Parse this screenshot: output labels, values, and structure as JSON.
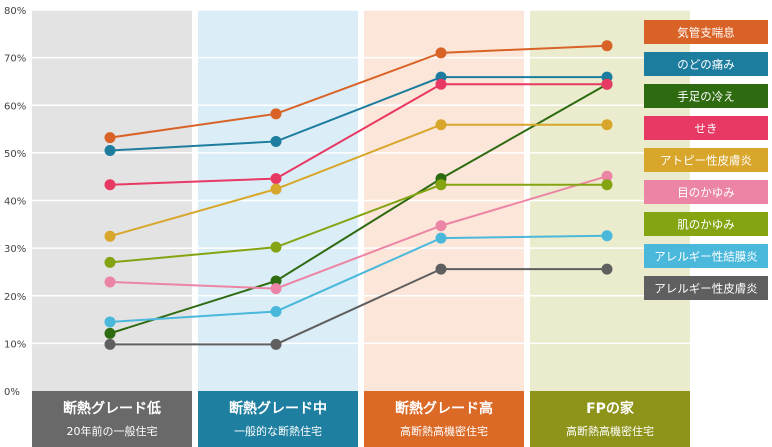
{
  "chart_data": {
    "type": "line",
    "ylim": [
      0,
      80
    ],
    "y_ticks": [
      "0%",
      "10%",
      "20%",
      "30%",
      "40%",
      "50%",
      "60%",
      "70%",
      "80%"
    ],
    "grid": true,
    "legend_position": "right",
    "categories": [
      {
        "title": "断熱グレード低",
        "subtitle": "20年前の一般住宅",
        "band_color": "#e3e3e3",
        "label_color": "#696969"
      },
      {
        "title": "断熱グレード中",
        "subtitle": "一般的な断熱住宅",
        "band_color": "#dbeef7",
        "label_color": "#1e7fa0"
      },
      {
        "title": "断熱グレード高",
        "subtitle": "高断熱高機密住宅",
        "band_color": "#fce6da",
        "label_color": "#db6a27"
      },
      {
        "title": "FPの家",
        "subtitle": "高断熱高機密住宅",
        "band_color": "#eaeccd",
        "label_color": "#8e9419"
      }
    ],
    "series": [
      {
        "name": "気管支喘息",
        "color": "#d96327",
        "values": [
          53.2,
          58.2,
          71.0,
          72.5
        ]
      },
      {
        "name": "のどの痛み",
        "color": "#1d7d9e",
        "values": [
          50.5,
          52.4,
          65.9,
          65.9
        ]
      },
      {
        "name": "手足の冷え",
        "color": "#2e6a0f",
        "values": [
          12.1,
          23.1,
          44.6,
          64.4
        ]
      },
      {
        "name": "せき",
        "color": "#e83864",
        "values": [
          43.3,
          44.6,
          64.4,
          64.4
        ]
      },
      {
        "name": "アトピー性皮膚炎",
        "color": "#d8a62b",
        "values": [
          32.5,
          42.4,
          55.9,
          55.9
        ]
      },
      {
        "name": "目のかゆみ",
        "color": "#ec85a5",
        "values": [
          22.9,
          21.5,
          34.7,
          45.1
        ]
      },
      {
        "name": "肌のかゆみ",
        "color": "#84a412",
        "values": [
          27.0,
          30.2,
          43.3,
          43.3
        ]
      },
      {
        "name": "アレルギー性結膜炎",
        "color": "#4ab8db",
        "values": [
          14.5,
          16.7,
          32.1,
          32.6
        ]
      },
      {
        "name": "アレルギー性皮膚炎",
        "color": "#5f5f5f",
        "values": [
          9.8,
          9.8,
          25.6,
          25.6
        ]
      }
    ]
  }
}
